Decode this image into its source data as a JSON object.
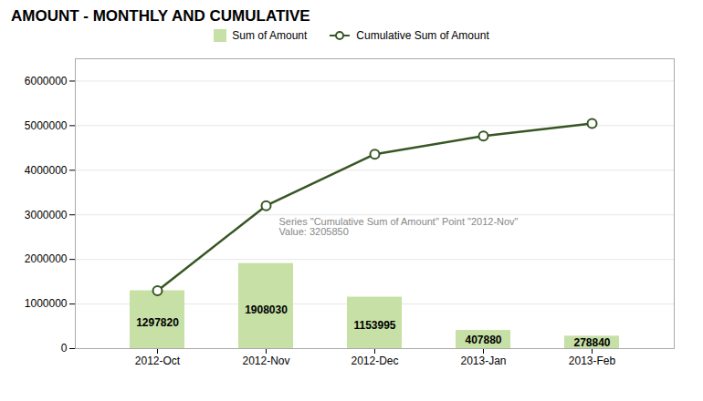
{
  "chart_data": {
    "type": "bar",
    "title": "AMOUNT - MONTHLY AND CUMULATIVE",
    "categories": [
      "2012-Oct",
      "2012-Nov",
      "2012-Dec",
      "2013-Jan",
      "2013-Feb"
    ],
    "series": [
      {
        "name": "Sum of Amount",
        "type": "bar",
        "color": "#c6e0a5",
        "data_labels": true,
        "values": [
          1297820,
          1908030,
          1153995,
          407880,
          278840
        ]
      },
      {
        "name": "Cumulative Sum of Amount",
        "type": "line",
        "color": "#375623",
        "marker": "circle",
        "values": [
          1297820,
          3205850,
          4359845,
          4767725,
          5046565
        ]
      }
    ],
    "ylim": [
      0,
      6500000
    ],
    "yticks": [
      0,
      1000000,
      2000000,
      3000000,
      4000000,
      5000000,
      6000000
    ],
    "grid": true,
    "legend": "top",
    "annotations": [
      {
        "text": "Series \"Cumulative Sum of Amount\" Point \"2012-Nov\"\nValue: 3205850",
        "x": "2012-Nov",
        "y": 3205850
      }
    ]
  }
}
